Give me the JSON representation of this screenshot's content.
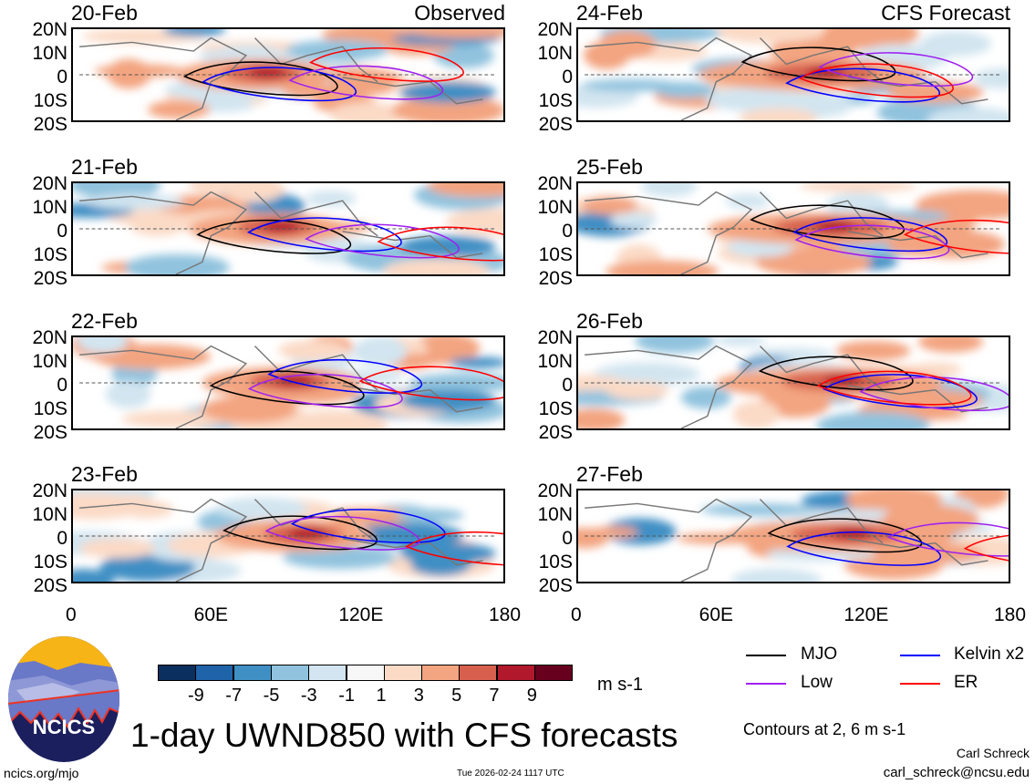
{
  "title": "1-day UWND850 with CFS forecasts",
  "observed_label": "Observed",
  "forecast_label": "CFS Forecast",
  "observed_panels": [
    {
      "date": "20-Feb"
    },
    {
      "date": "21-Feb"
    },
    {
      "date": "22-Feb"
    },
    {
      "date": "23-Feb"
    }
  ],
  "forecast_panels": [
    {
      "date": "24-Feb"
    },
    {
      "date": "25-Feb"
    },
    {
      "date": "26-Feb"
    },
    {
      "date": "27-Feb"
    }
  ],
  "lat_ticks": [
    "20N",
    "10N",
    "0",
    "10S",
    "20S"
  ],
  "lon_ticks": [
    "0",
    "60E",
    "120E",
    "180"
  ],
  "colorbar": {
    "colors": [
      "#0b2f5e",
      "#1f63a8",
      "#3f8fc4",
      "#91c3de",
      "#d2e5f0",
      "#f7f7f7",
      "#fbdac6",
      "#f3a480",
      "#d6604d",
      "#b2182b",
      "#67001f"
    ],
    "labels": [
      "-9",
      "-7",
      "-5",
      "-3",
      "-1",
      "1",
      "3",
      "5",
      "7",
      "9"
    ],
    "units": "m s-1"
  },
  "legend": [
    {
      "label": "MJO",
      "color": "#000000"
    },
    {
      "label": "Kelvin x2",
      "color": "#0000ff"
    },
    {
      "label": "Low",
      "color": "#a020f0"
    },
    {
      "label": "ER",
      "color": "#ff0000"
    }
  ],
  "contours_note": "Contours at 2, 6 m s-1",
  "logo_text": "NCICS",
  "website": "ncics.org/mjo",
  "timestamp": "Tue 2026-02-24 1117 UTC",
  "author": "Carl Schreck",
  "email": "carl_schreck@ncsu.edu"
}
